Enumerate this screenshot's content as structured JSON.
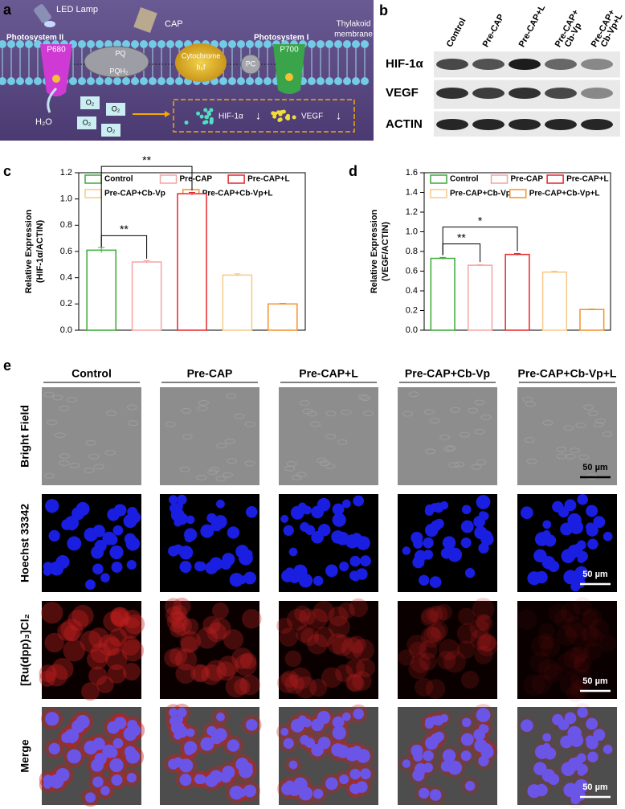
{
  "panel_a": {
    "label": "a",
    "led_lamp": "LED Lamp",
    "cap": "CAP",
    "photosystem_ii": "Photosystem II",
    "p680": "P680",
    "pq": "PQ",
    "pqh2": "PQH₂",
    "cytochrome": [
      "Cytochrome",
      "b₆f"
    ],
    "pc": "PC",
    "photosystem_i": "Photosystem I",
    "p700": "P700",
    "thylakoid_membrane": [
      "Thylakoid",
      "membrane"
    ],
    "h2o": "H₂O",
    "o2": "O₂",
    "hif": "HIF-1α",
    "vegf": "VEGF",
    "down": "↓"
  },
  "panel_b": {
    "label": "b",
    "lanes": [
      [
        "Control"
      ],
      [
        "Pre-CAP"
      ],
      [
        "Pre-CAP+L"
      ],
      [
        "Pre-CAP+",
        "Cb-Vp"
      ],
      [
        "Pre-CAP+",
        "Cb-Vp+L"
      ]
    ],
    "rows": [
      "HIF-1α",
      "VEGF",
      "ACTIN"
    ]
  },
  "chart_data": [
    {
      "type": "bar",
      "label": "c",
      "ylabel": [
        "Relative Expression",
        "(HIF-1α/ACTIN)"
      ],
      "categories": [
        "Control",
        "Pre-CAP",
        "Pre-CAP+L",
        "Pre-CAP+Cb-Vp",
        "Pre-CAP+Cb-Vp+L"
      ],
      "values": [
        0.61,
        0.52,
        1.04,
        0.42,
        0.2
      ],
      "errors": [
        0.02,
        0.01,
        0.01,
        0.01,
        0.005
      ],
      "colors": [
        "#3aaa35",
        "#f4a3a3",
        "#e5262b",
        "#f8c88a",
        "#f2922a"
      ],
      "ylim": [
        0,
        1.2
      ],
      "yticks": [
        {
          "value": 0,
          "label": "0.0"
        },
        0.2,
        0.4,
        0.6,
        0.8,
        {
          "value": 1,
          "label": "1.0"
        },
        1.2
      ],
      "annotations": [
        {
          "text": "**",
          "between": [
            "Control",
            "Pre-CAP"
          ]
        },
        {
          "text": "**",
          "between": [
            "Control",
            "Pre-CAP+L"
          ]
        }
      ]
    },
    {
      "type": "bar",
      "label": "d",
      "ylabel": [
        "Relative Expression",
        "(VEGF/ACTIN)"
      ],
      "categories": [
        "Control",
        "Pre-CAP",
        "Pre-CAP+L",
        "Pre-CAP+Cb-Vp",
        "Pre-CAP+Cb-Vp+L"
      ],
      "values": [
        0.73,
        0.66,
        0.77,
        0.59,
        0.21
      ],
      "errors": [
        0.01,
        0.005,
        0.01,
        0.01,
        0.005
      ],
      "colors": [
        "#3aaa35",
        "#f4a3a3",
        "#e5262b",
        "#f8c88a",
        "#f2922a"
      ],
      "ylim": [
        0,
        1.6
      ],
      "yticks": [
        {
          "value": 0,
          "label": "0.0"
        },
        0.2,
        0.4,
        0.6,
        0.8,
        {
          "value": 1,
          "label": "1.0"
        },
        1.2,
        1.4,
        1.6
      ],
      "annotations": [
        {
          "text": "**",
          "between": [
            "Control",
            "Pre-CAP"
          ]
        },
        {
          "text": "*",
          "between": [
            "Control",
            "Pre-CAP+L"
          ]
        }
      ]
    }
  ],
  "panel_e": {
    "label": "e",
    "columns": [
      "Control",
      "Pre-CAP",
      "Pre-CAP+L",
      "Pre-CAP+Cb-Vp",
      "Pre-CAP+Cb-Vp+L"
    ],
    "rows": [
      "Bright Field",
      "Hoechst 33342",
      "[Ru(dpp)₃]Cl₂",
      "Merge"
    ],
    "scale_bar": "50 µm"
  }
}
